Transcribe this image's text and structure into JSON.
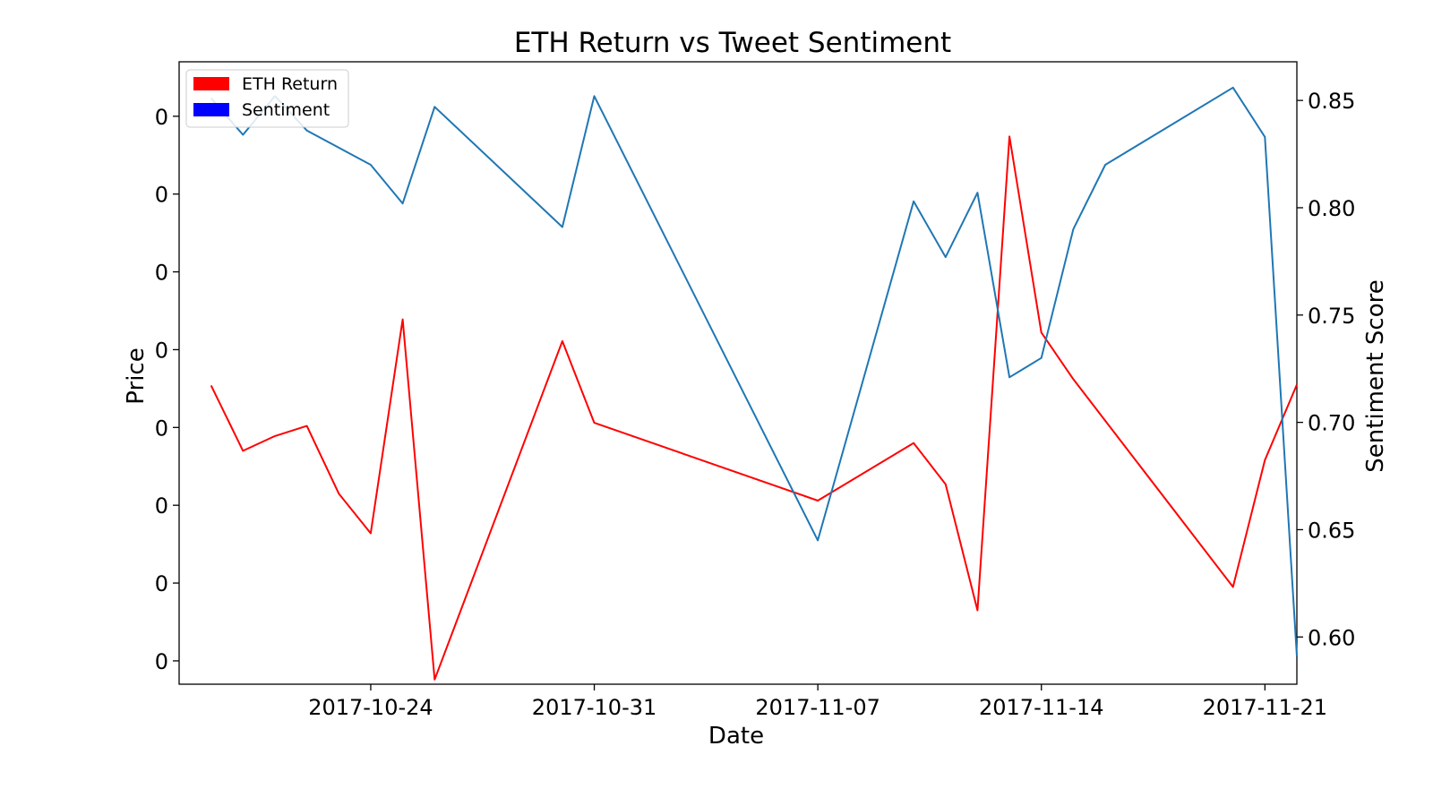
{
  "chart_data": {
    "type": "line",
    "title": "ETH Return vs Tweet Sentiment",
    "xlabel": "Date",
    "ylabel_left": "Price",
    "ylabel_right": "Sentiment Score",
    "x_ticks": [
      "2017-10-24",
      "2017-10-31",
      "2017-11-07",
      "2017-11-14",
      "2017-11-21"
    ],
    "x_domain": [
      "2017-10-18",
      "2017-11-22"
    ],
    "left_y_ticks": [
      "0",
      "0",
      "0",
      "0",
      "0",
      "0",
      "0",
      "0"
    ],
    "left_ylim": [
      -0.3,
      7.7
    ],
    "right_ylim": [
      0.578,
      0.868
    ],
    "right_y_ticks": [
      0.6,
      0.65,
      0.7,
      0.75,
      0.8,
      0.85
    ],
    "right_y_tick_labels": [
      "0.60",
      "0.65",
      "0.70",
      "0.75",
      "0.80",
      "0.85"
    ],
    "legend": {
      "position": "top-left",
      "entries": [
        "ETH Return",
        "Sentiment"
      ]
    },
    "grid": false,
    "series": [
      {
        "name": "ETH Return",
        "axis": "left",
        "color": "#ff0000",
        "x": [
          "2017-10-19",
          "2017-10-20",
          "2017-10-21",
          "2017-10-22",
          "2017-10-23",
          "2017-10-24",
          "2017-10-25",
          "2017-10-26",
          "2017-10-30",
          "2017-10-31",
          "2017-11-01",
          "2017-11-07",
          "2017-11-10",
          "2017-11-11",
          "2017-11-12",
          "2017-11-13",
          "2017-11-14",
          "2017-11-15",
          "2017-11-16",
          "2017-11-20",
          "2017-11-21",
          "2017-11-22"
        ],
        "values": [
          3.54,
          2.7,
          2.89,
          3.02,
          2.15,
          1.64,
          4.39,
          -0.24,
          4.11,
          3.06,
          null,
          2.06,
          2.8,
          2.27,
          0.65,
          6.74,
          4.22,
          3.62,
          null,
          0.95,
          2.58,
          3.55
        ]
      },
      {
        "name": "Sentiment",
        "axis": "right",
        "color": "#1f77b4",
        "x": [
          "2017-10-19",
          "2017-10-20",
          "2017-10-21",
          "2017-10-22",
          "2017-10-23",
          "2017-10-24",
          "2017-10-25",
          "2017-10-26",
          "2017-10-30",
          "2017-10-31",
          "2017-11-07",
          "2017-11-10",
          "2017-11-11",
          "2017-11-12",
          "2017-11-13",
          "2017-11-14",
          "2017-11-15",
          "2017-11-16",
          "2017-11-17",
          "2017-11-20",
          "2017-11-21",
          "2017-11-22"
        ],
        "values": [
          0.851,
          0.834,
          0.852,
          0.836,
          0.828,
          0.82,
          0.802,
          0.847,
          0.791,
          0.852,
          0.645,
          0.803,
          0.777,
          0.807,
          0.721,
          0.73,
          0.79,
          0.82,
          0.829,
          0.856,
          0.833,
          0.591
        ]
      }
    ]
  }
}
